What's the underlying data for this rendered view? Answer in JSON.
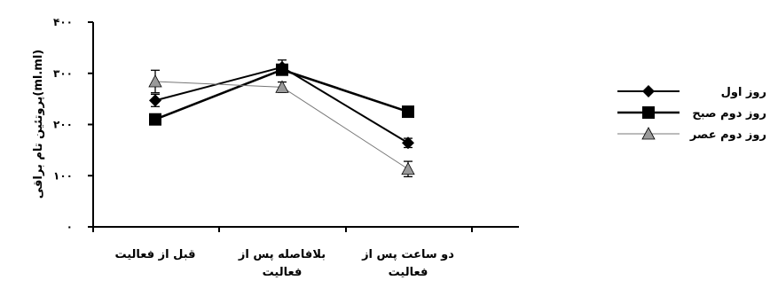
{
  "chart_data": {
    "type": "line",
    "ylabel": "پروتئین تام براقی(ml.ml)",
    "ylim": [
      0,
      400
    ],
    "yticks": [
      {
        "value": 0,
        "label": "۰"
      },
      {
        "value": 100,
        "label": "۱۰۰"
      },
      {
        "value": 200,
        "label": "۲۰۰"
      },
      {
        "value": 300,
        "label": "۳۰۰"
      },
      {
        "value": 400,
        "label": "۴۰۰"
      }
    ],
    "categories": [
      [
        "قبل از فعالیت"
      ],
      [
        "بلافاصله پس از",
        "فعالیت"
      ],
      [
        "دو ساعت پس از",
        "فعالیت"
      ]
    ],
    "legend_position": "right",
    "grid": false,
    "series": [
      {
        "name": "روز اول",
        "marker": "diamond",
        "line_color": "#000000",
        "line_width": 2,
        "values": [
          247,
          312,
          164
        ],
        "errors": [
          12,
          14,
          9
        ]
      },
      {
        "name": "روز دوم صبح",
        "marker": "square",
        "line_color": "#000000",
        "line_width": 2.6,
        "values": [
          210,
          307,
          225
        ],
        "errors": [
          8,
          10,
          7
        ]
      },
      {
        "name": "روز دوم عصر",
        "marker": "triangle",
        "line_color": "#777777",
        "line_width": 1,
        "values": [
          284,
          273,
          113
        ],
        "errors": [
          22,
          10,
          15
        ]
      }
    ]
  }
}
